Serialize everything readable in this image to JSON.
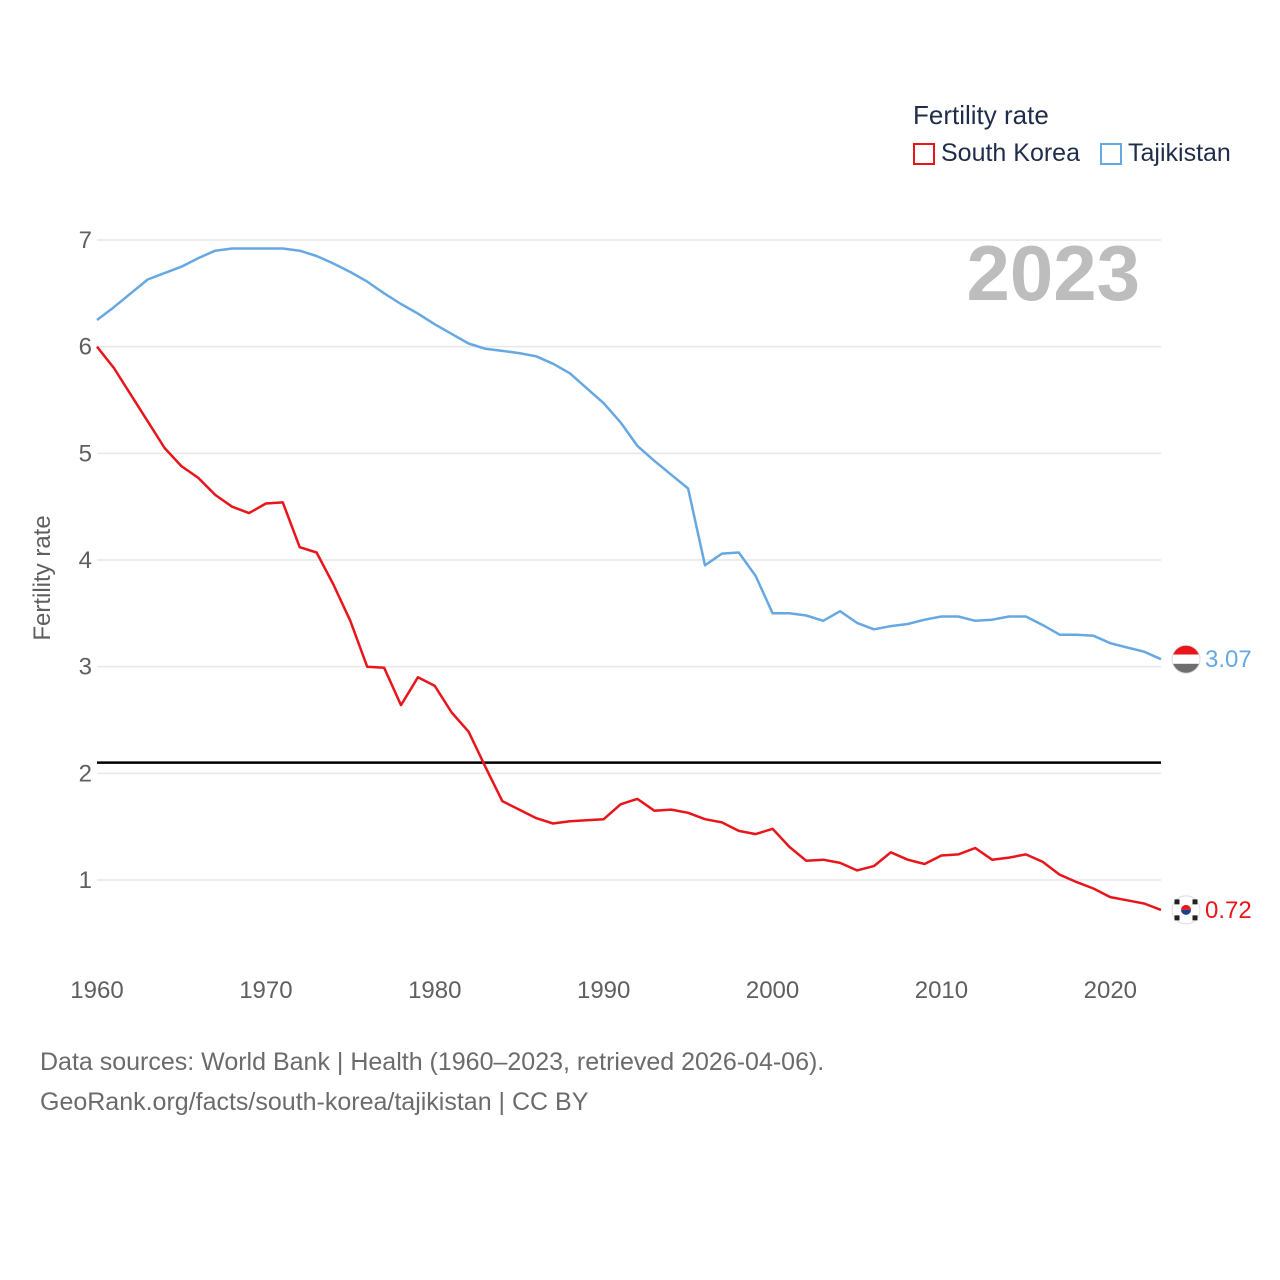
{
  "legend": {
    "title": "Fertility rate",
    "items": [
      {
        "name": "South Korea",
        "color": "#e8161b"
      },
      {
        "name": "Tajikistan",
        "color": "#66a8e2"
      }
    ]
  },
  "year_label": "2023",
  "footer": {
    "line1": "Data sources: World Bank | Health (1960–2023, retrieved 2026-04-06).",
    "line2": "GeoRank.org/facts/south-korea/tajikistan | CC BY"
  },
  "chart_data": {
    "type": "line",
    "title": "Fertility rate",
    "xlabel": "",
    "ylabel": "Fertility rate",
    "xlim": [
      1960,
      2023
    ],
    "ylim": [
      0.3,
      7.4
    ],
    "x_ticks": [
      1960,
      1970,
      1980,
      1990,
      2000,
      2010,
      2020
    ],
    "y_ticks": [
      1,
      2,
      3,
      4,
      5,
      6,
      7
    ],
    "reference_line": {
      "y": 2.1,
      "color": "#000000"
    },
    "x": [
      1960,
      1961,
      1962,
      1963,
      1964,
      1965,
      1966,
      1967,
      1968,
      1969,
      1970,
      1971,
      1972,
      1973,
      1974,
      1975,
      1976,
      1977,
      1978,
      1979,
      1980,
      1981,
      1982,
      1983,
      1984,
      1985,
      1986,
      1987,
      1988,
      1989,
      1990,
      1991,
      1992,
      1993,
      1994,
      1995,
      1996,
      1997,
      1998,
      1999,
      2000,
      2001,
      2002,
      2003,
      2004,
      2005,
      2006,
      2007,
      2008,
      2009,
      2010,
      2011,
      2012,
      2013,
      2014,
      2015,
      2016,
      2017,
      2018,
      2019,
      2020,
      2021,
      2022,
      2023
    ],
    "series": [
      {
        "name": "South Korea",
        "color": "#e8161b",
        "end_label": "0.72",
        "values": [
          6.0,
          5.8,
          5.55,
          5.3,
          5.05,
          4.88,
          4.77,
          4.61,
          4.5,
          4.44,
          4.53,
          4.54,
          4.12,
          4.07,
          3.77,
          3.43,
          3.0,
          2.99,
          2.64,
          2.9,
          2.82,
          2.57,
          2.39,
          2.06,
          1.74,
          1.66,
          1.58,
          1.53,
          1.55,
          1.56,
          1.57,
          1.71,
          1.76,
          1.65,
          1.66,
          1.63,
          1.57,
          1.54,
          1.46,
          1.43,
          1.48,
          1.31,
          1.18,
          1.19,
          1.16,
          1.09,
          1.13,
          1.26,
          1.19,
          1.15,
          1.23,
          1.24,
          1.3,
          1.19,
          1.21,
          1.24,
          1.17,
          1.05,
          0.98,
          0.92,
          0.84,
          0.81,
          0.78,
          0.72
        ]
      },
      {
        "name": "Tajikistan",
        "color": "#66a8e2",
        "end_label": "3.07",
        "values": [
          6.25,
          6.37,
          6.5,
          6.63,
          6.69,
          6.75,
          6.83,
          6.9,
          6.92,
          6.92,
          6.92,
          6.92,
          6.9,
          6.85,
          6.78,
          6.7,
          6.61,
          6.5,
          6.4,
          6.31,
          6.21,
          6.12,
          6.03,
          5.98,
          5.96,
          5.94,
          5.91,
          5.84,
          5.75,
          5.61,
          5.47,
          5.29,
          5.07,
          4.93,
          4.8,
          4.67,
          3.95,
          4.06,
          4.07,
          3.85,
          3.5,
          3.5,
          3.48,
          3.43,
          3.52,
          3.41,
          3.35,
          3.38,
          3.4,
          3.44,
          3.47,
          3.47,
          3.43,
          3.44,
          3.47,
          3.47,
          3.39,
          3.3,
          3.3,
          3.29,
          3.22,
          3.18,
          3.14,
          3.07
        ]
      }
    ]
  }
}
